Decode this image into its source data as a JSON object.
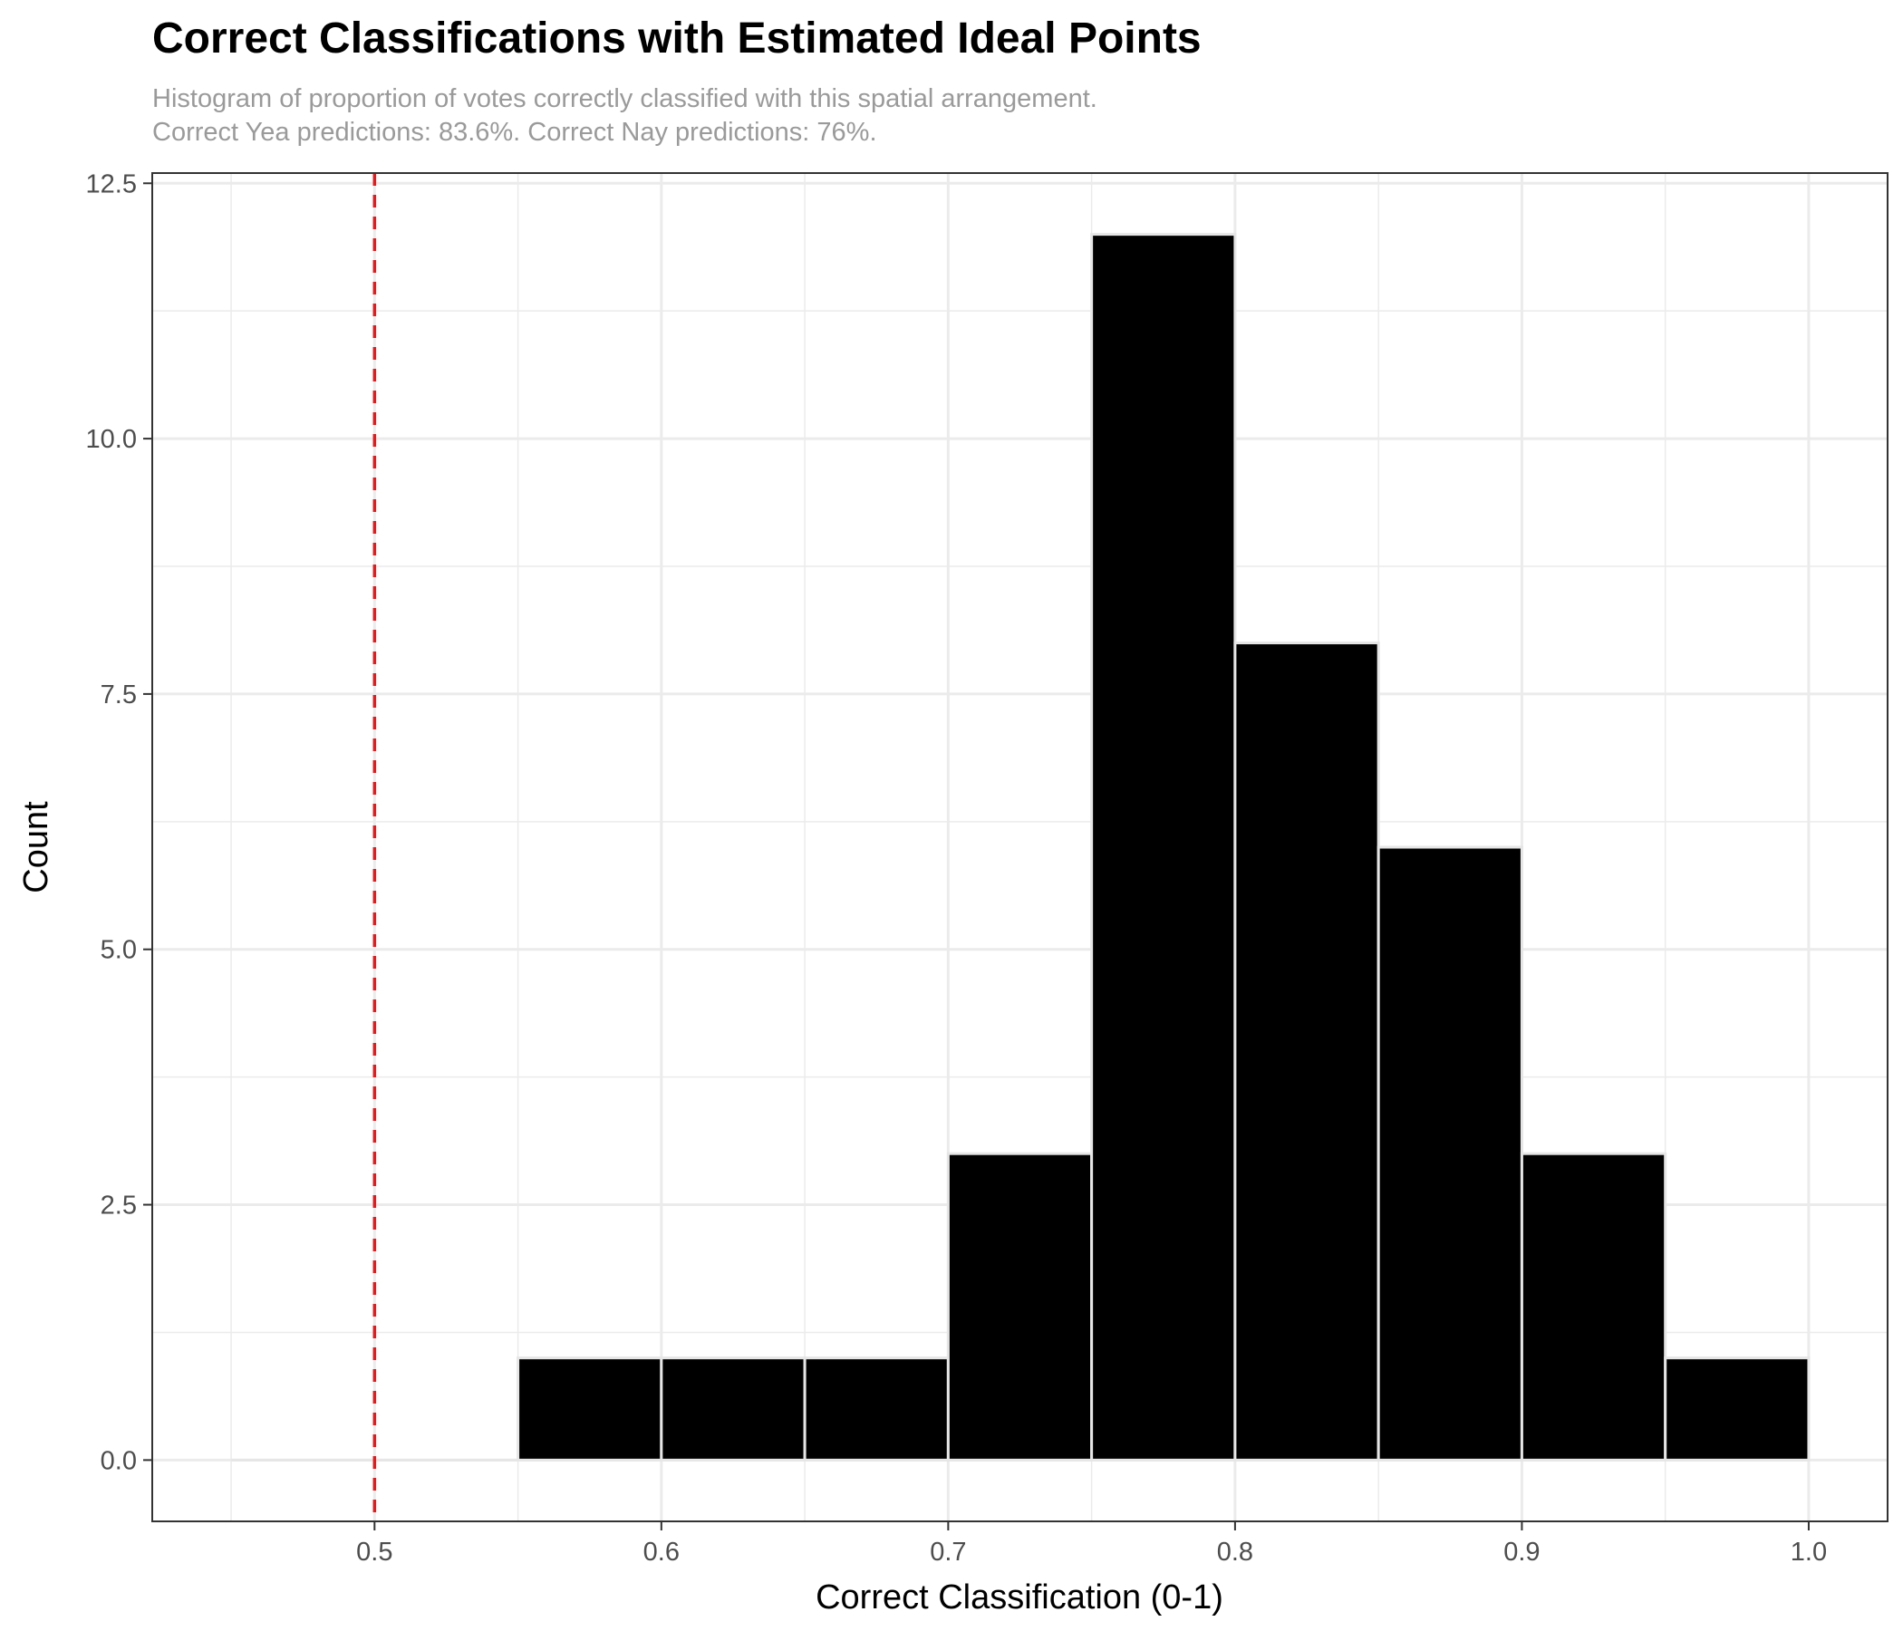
{
  "chart_data": {
    "type": "bar",
    "title": "Correct Classifications with Estimated Ideal Points",
    "subtitle_lines": [
      "Histogram of proportion of votes correctly classified with this spatial arrangement.",
      "Correct Yea predictions: 83.6%. Correct Nay predictions: 76%."
    ],
    "xlabel": "Correct Classification (0-1)",
    "ylabel": "Count",
    "bins": [
      {
        "start": 0.55,
        "end": 0.6,
        "count": 1
      },
      {
        "start": 0.6,
        "end": 0.65,
        "count": 1
      },
      {
        "start": 0.65,
        "end": 0.7,
        "count": 1
      },
      {
        "start": 0.7,
        "end": 0.75,
        "count": 3
      },
      {
        "start": 0.75,
        "end": 0.8,
        "count": 12
      },
      {
        "start": 0.8,
        "end": 0.85,
        "count": 8
      },
      {
        "start": 0.85,
        "end": 0.9,
        "count": 6
      },
      {
        "start": 0.9,
        "end": 0.95,
        "count": 3
      },
      {
        "start": 0.95,
        "end": 1.0,
        "count": 1
      }
    ],
    "reference_line": {
      "x": 0.5,
      "color": "#e41a1c",
      "style": "dashed"
    },
    "x_ticks": [
      0.5,
      0.6,
      0.7,
      0.8,
      0.9,
      1.0
    ],
    "x_tick_labels": [
      "0.5",
      "0.6",
      "0.7",
      "0.8",
      "0.9",
      "1.0"
    ],
    "y_ticks": [
      0,
      2.5,
      5,
      7.5,
      10,
      12.5
    ],
    "y_tick_labels": [
      "0.0",
      "2.5",
      "5.0",
      "7.5",
      "10.0",
      "12.5"
    ],
    "xlim": [
      0.4225,
      1.0275
    ],
    "ylim": [
      -0.6,
      12.6
    ],
    "bar_fill": "#000000",
    "bar_outline": "#e6e6e6",
    "grid": true,
    "legend": "none"
  }
}
